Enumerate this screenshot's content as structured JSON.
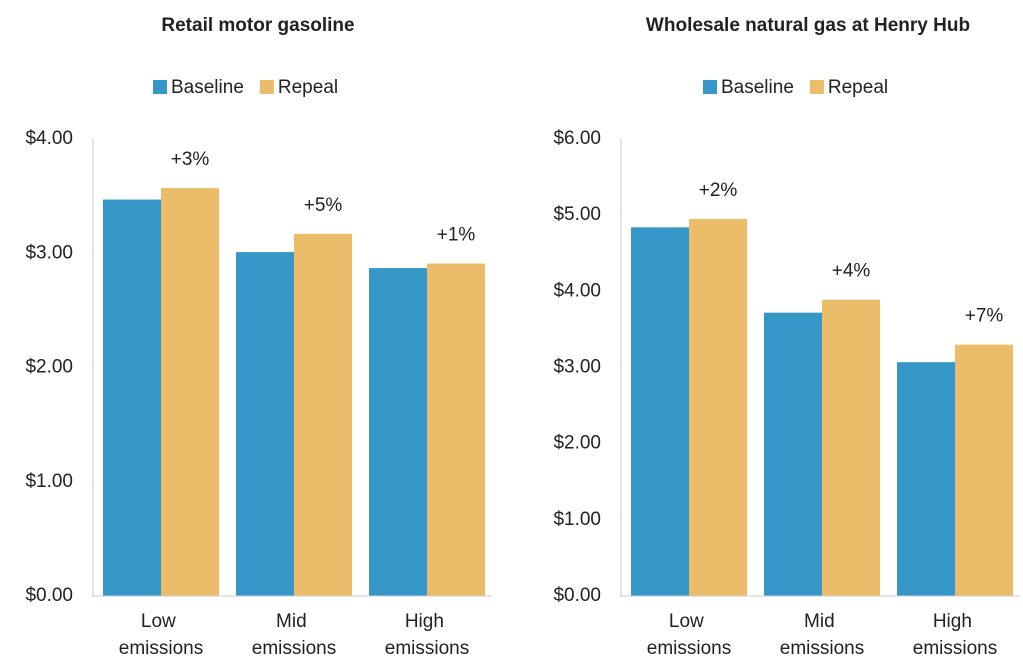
{
  "chart_data": [
    {
      "type": "bar",
      "title": "Retail motor gasoline",
      "categories": [
        "Low emissions",
        "Mid emissions",
        "High emissions"
      ],
      "series": [
        {
          "name": "Baseline",
          "color": "#3596c8",
          "values": [
            3.47,
            3.01,
            2.87
          ]
        },
        {
          "name": "Repeal",
          "color": "#ebbd6a",
          "values": [
            3.57,
            3.17,
            2.91
          ]
        }
      ],
      "annotations": [
        "+3%",
        "+5%",
        "+1%"
      ],
      "ylim": [
        0,
        4
      ],
      "yticks": [
        {
          "value": 0,
          "label": "$0.00"
        },
        {
          "value": 1,
          "label": "$1.00"
        },
        {
          "value": 2,
          "label": "$2.00"
        },
        {
          "value": 3,
          "label": "$3.00"
        },
        {
          "value": 4,
          "label": "$4.00"
        }
      ],
      "legend": "top"
    },
    {
      "type": "bar",
      "title": "Wholesale natural gas at Henry Hub",
      "categories": [
        "Low emissions",
        "Mid emissions",
        "High emissions"
      ],
      "series": [
        {
          "name": "Baseline",
          "color": "#3596c8",
          "values": [
            4.84,
            3.72,
            3.07
          ]
        },
        {
          "name": "Repeal",
          "color": "#ebbd6a",
          "values": [
            4.95,
            3.89,
            3.3
          ]
        }
      ],
      "annotations": [
        "+2%",
        "+4%",
        "+7%"
      ],
      "ylim": [
        0,
        6
      ],
      "yticks": [
        {
          "value": 0,
          "label": "$0.00"
        },
        {
          "value": 1,
          "label": "$1.00"
        },
        {
          "value": 2,
          "label": "$2.00"
        },
        {
          "value": 3,
          "label": "$3.00"
        },
        {
          "value": 4,
          "label": "$4.00"
        },
        {
          "value": 5,
          "label": "$5.00"
        },
        {
          "value": 6,
          "label": "$6.00"
        }
      ],
      "legend": "top"
    }
  ]
}
